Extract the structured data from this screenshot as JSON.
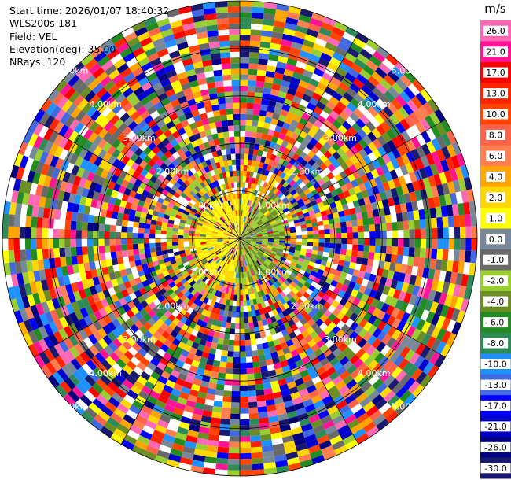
{
  "header": {
    "start_time": "Start time: 2026/01/07 18:40:32",
    "instrument": "WLS200s-181",
    "field": "Field: VEL",
    "elevation": "Elevation(deg): 35.00",
    "nrays": "NRays: 120"
  },
  "chart_data": {
    "type": "heatmap",
    "projection": "polar-ppi",
    "field": "VEL",
    "units": "m/s",
    "nrays": 120,
    "elevation_deg": 35.0,
    "range_rings_km": [
      1.0,
      2.0,
      3.0,
      4.0,
      5.0
    ],
    "range_ring_labels": [
      "1.00km",
      "2.00km",
      "3.00km",
      "4.00km",
      "5.00km"
    ],
    "max_range_km": 5.0,
    "near_field_dominant_values": [
      3.0,
      -2.0
    ],
    "far_field": "noise spanning full scale",
    "colorbar": {
      "label": "m/s",
      "vmin": -30.0,
      "vmax": 26.0,
      "tick_labels": [
        "26.0",
        "21.0",
        "17.0",
        "13.0",
        "10.0",
        "8.0",
        "6.0",
        "4.0",
        "2.0",
        "1.0",
        "0.0",
        "-1.0",
        "-2.0",
        "-4.0",
        "-6.0",
        "-8.0",
        "-10.0",
        "-13.0",
        "-17.0",
        "-21.0",
        "-26.0",
        "-30.0"
      ],
      "colors": [
        "#ff69b4",
        "#ff1493",
        "#ff0000",
        "#ff2400",
        "#ff4500",
        "#ff6347",
        "#ff7f50",
        "#ffa500",
        "#ffd700",
        "#ffff00",
        "#778899",
        "#696969",
        "#9acd32",
        "#6b8e23",
        "#228b22",
        "#2e8b57",
        "#1e90ff",
        "#4169e1",
        "#0000ff",
        "#0000cd",
        "#000080",
        "#191970"
      ]
    }
  }
}
